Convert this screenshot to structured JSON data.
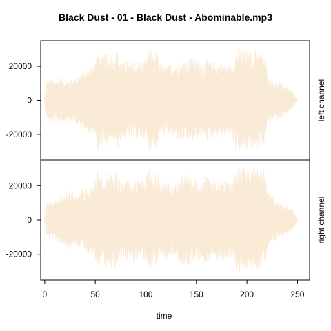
{
  "chart_data": {
    "type": "area",
    "title": "Black Dust - 01 - Black Dust - Abominable.mp3",
    "xlabel": "time",
    "x_ticks": [
      0,
      50,
      100,
      150,
      200,
      250
    ],
    "xlim": [
      -4,
      262
    ],
    "waveform_color": "#FAEBD7",
    "panels": [
      {
        "name": "left",
        "ylabel": "left channel",
        "ylim": [
          -35000,
          35000
        ],
        "y_ticks": [
          -20000,
          0,
          20000
        ],
        "envelope": {
          "x": [
            0,
            2,
            5,
            10,
            15,
            20,
            25,
            30,
            35,
            40,
            45,
            50,
            52,
            55,
            58,
            60,
            63,
            65,
            68,
            70,
            72,
            75,
            78,
            80,
            82,
            85,
            88,
            90,
            95,
            100,
            103,
            105,
            108,
            110,
            112,
            115,
            118,
            120,
            125,
            130,
            135,
            140,
            145,
            150,
            155,
            160,
            165,
            170,
            175,
            180,
            185,
            188,
            190,
            192,
            195,
            200,
            205,
            210,
            215,
            218,
            220,
            222,
            225,
            230,
            235,
            240,
            245,
            248,
            250
          ],
          "upper": [
            2000,
            12000,
            12500,
            12000,
            13500,
            12500,
            12000,
            14000,
            16000,
            17000,
            20000,
            24000,
            31000,
            28000,
            26000,
            30000,
            24000,
            30500,
            25000,
            31000,
            29000,
            24000,
            22000,
            24000,
            23000,
            22000,
            24000,
            23000,
            24000,
            25000,
            32000,
            30000,
            24000,
            30000,
            27000,
            22000,
            21000,
            20000,
            22000,
            23000,
            24000,
            25000,
            26000,
            24000,
            22000,
            24000,
            24500,
            23000,
            22000,
            21000,
            21000,
            28000,
            30000,
            32000,
            31000,
            30000,
            29000,
            32000,
            26000,
            28000,
            15000,
            14000,
            12000,
            11000,
            10000,
            8000,
            5000,
            2000,
            500
          ],
          "lower": [
            -2000,
            -12000,
            -13000,
            -13500,
            -13000,
            -12500,
            -13000,
            -14000,
            -16000,
            -17000,
            -20000,
            -22000,
            -31000,
            -28000,
            -24000,
            -30000,
            -22000,
            -32000,
            -25000,
            -30000,
            -29000,
            -24000,
            -22000,
            -24000,
            -24000,
            -21000,
            -24000,
            -23000,
            -24000,
            -22000,
            -31000,
            -30000,
            -24000,
            -30000,
            -25000,
            -20000,
            -21000,
            -20000,
            -22000,
            -23000,
            -24000,
            -25000,
            -26000,
            -23000,
            -22000,
            -24000,
            -23000,
            -22000,
            -22000,
            -21000,
            -20000,
            -27000,
            -31000,
            -32000,
            -31000,
            -30000,
            -29000,
            -32000,
            -26000,
            -28000,
            -15000,
            -14000,
            -12000,
            -11000,
            -10000,
            -8000,
            -5000,
            -2000,
            -500
          ]
        }
      },
      {
        "name": "right",
        "ylabel": "right channel",
        "ylim": [
          -35000,
          35000
        ],
        "y_ticks": [
          -20000,
          0,
          20000
        ],
        "envelope": {
          "x": [
            0,
            2,
            5,
            10,
            15,
            20,
            25,
            30,
            35,
            40,
            45,
            50,
            52,
            55,
            58,
            60,
            63,
            65,
            68,
            70,
            72,
            75,
            78,
            80,
            82,
            85,
            88,
            90,
            95,
            100,
            103,
            105,
            108,
            110,
            112,
            115,
            118,
            120,
            125,
            130,
            135,
            140,
            145,
            150,
            155,
            160,
            165,
            170,
            175,
            180,
            185,
            188,
            190,
            192,
            195,
            200,
            205,
            210,
            215,
            218,
            220,
            222,
            225,
            230,
            235,
            240,
            245,
            248,
            250
          ],
          "upper": [
            2000,
            10000,
            10500,
            11000,
            13000,
            16000,
            18000,
            15000,
            17000,
            19000,
            20000,
            24000,
            32000,
            27000,
            26000,
            32000,
            26000,
            30000,
            25000,
            31000,
            26000,
            24000,
            22000,
            24000,
            23000,
            22000,
            26000,
            23000,
            24000,
            26000,
            31000,
            30000,
            24000,
            30000,
            27000,
            22000,
            21000,
            24000,
            22000,
            23000,
            26000,
            27000,
            26000,
            24000,
            24000,
            26000,
            24500,
            25000,
            24000,
            23000,
            23000,
            28000,
            30000,
            31000,
            31000,
            30000,
            29000,
            32000,
            28000,
            33000,
            17000,
            16000,
            14000,
            12000,
            10000,
            8000,
            6000,
            3000,
            500
          ],
          "lower": [
            -2000,
            -10000,
            -10500,
            -11000,
            -14000,
            -16000,
            -18000,
            -15000,
            -17000,
            -19000,
            -20000,
            -22000,
            -30000,
            -27000,
            -24000,
            -32000,
            -24000,
            -31000,
            -25000,
            -30000,
            -26000,
            -24000,
            -22000,
            -24000,
            -24000,
            -21000,
            -26000,
            -23000,
            -24000,
            -24000,
            -30000,
            -30000,
            -24000,
            -30000,
            -25000,
            -22000,
            -21000,
            -24000,
            -22000,
            -23000,
            -26000,
            -27000,
            -26000,
            -23000,
            -24000,
            -26000,
            -23000,
            -24000,
            -24000,
            -23000,
            -22000,
            -27000,
            -31000,
            -32000,
            -30000,
            -30000,
            -29000,
            -31000,
            -28000,
            -32000,
            -17000,
            -16000,
            -14000,
            -12000,
            -10000,
            -8000,
            -6000,
            -3000,
            -500
          ]
        }
      }
    ]
  }
}
